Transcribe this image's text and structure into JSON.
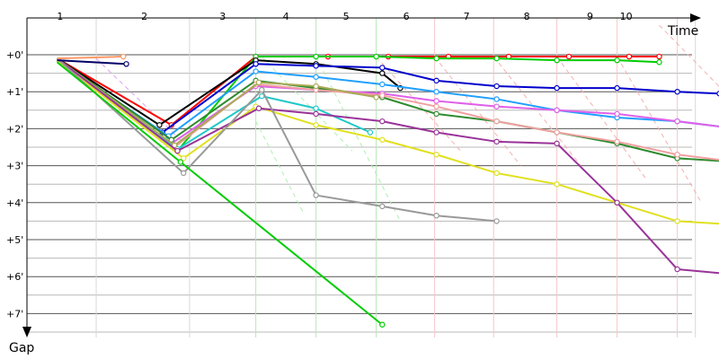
{
  "chart_data": {
    "type": "line",
    "title": "",
    "xlabel": "Time",
    "ylabel": "Gap",
    "x_ticks": [
      "1",
      "2",
      "3",
      "4",
      "5",
      "6",
      "7",
      "8",
      "9",
      "10"
    ],
    "y_ticks": [
      "+0'",
      "+1'",
      "+2'",
      "+3'",
      "+4'",
      "+5'",
      "+6'",
      "+7'"
    ],
    "ylim": [
      0,
      7.8
    ],
    "grid": true,
    "series": [
      {
        "color": "#ff0000",
        "points": [
          [
            0.5,
            0.1
          ],
          [
            2.4,
            1.9
          ],
          [
            3.8,
            0.05
          ],
          [
            5,
            0.05
          ],
          [
            6,
            0.05
          ],
          [
            7,
            0.05
          ],
          [
            8,
            0.05
          ],
          [
            9,
            0.05
          ],
          [
            10,
            0.05
          ],
          [
            10.5,
            0.05
          ]
        ]
      },
      {
        "color": "#00cc00",
        "points": [
          [
            0.5,
            0.1
          ],
          [
            2.5,
            2.6
          ],
          [
            3.8,
            0.05
          ],
          [
            4.8,
            0.05
          ],
          [
            5.8,
            0.05
          ],
          [
            6.8,
            0.1
          ],
          [
            7.8,
            0.1
          ],
          [
            8.8,
            0.15
          ],
          [
            9.8,
            0.15
          ],
          [
            10.5,
            0.2
          ]
        ]
      },
      {
        "color": "#000000",
        "points": [
          [
            0.5,
            0.1
          ],
          [
            2.2,
            1.9
          ],
          [
            3.8,
            0.15
          ],
          [
            4.8,
            0.25
          ],
          [
            5.9,
            0.5
          ],
          [
            6.2,
            0.9
          ]
        ]
      },
      {
        "color": "#0000cc",
        "points": [
          [
            0.5,
            0.15
          ],
          [
            2.25,
            2.1
          ],
          [
            3.8,
            0.25
          ],
          [
            4.8,
            0.3
          ],
          [
            5.9,
            0.35
          ],
          [
            6.8,
            0.7
          ],
          [
            7.8,
            0.85
          ],
          [
            8.8,
            0.9
          ],
          [
            9.8,
            0.9
          ],
          [
            10.8,
            1.0
          ],
          [
            11.5,
            1.05
          ]
        ]
      },
      {
        "color": "#1f9fff",
        "points": [
          [
            0.5,
            0.15
          ],
          [
            2.35,
            2.2
          ],
          [
            3.8,
            0.45
          ],
          [
            4.8,
            0.6
          ],
          [
            5.9,
            0.8
          ],
          [
            6.8,
            1.0
          ],
          [
            7.8,
            1.2
          ],
          [
            8.8,
            1.5
          ],
          [
            9.8,
            1.7
          ],
          [
            10.8,
            1.8
          ],
          [
            11.8,
            2.0
          ]
        ]
      },
      {
        "color": "#e060e8",
        "points": [
          [
            0.5,
            0.15
          ],
          [
            2.4,
            2.4
          ],
          [
            3.8,
            0.85
          ],
          [
            4.8,
            0.95
          ],
          [
            5.9,
            1.05
          ],
          [
            6.8,
            1.25
          ],
          [
            7.8,
            1.4
          ],
          [
            8.8,
            1.5
          ],
          [
            9.8,
            1.6
          ],
          [
            10.8,
            1.8
          ],
          [
            11.8,
            2.0
          ]
        ]
      },
      {
        "color": "#2e8b2e",
        "points": [
          [
            0.5,
            0.1
          ],
          [
            2.4,
            2.3
          ],
          [
            3.8,
            0.7
          ],
          [
            4.8,
            0.9
          ],
          [
            5.9,
            1.15
          ],
          [
            6.8,
            1.6
          ],
          [
            7.8,
            1.8
          ],
          [
            8.8,
            2.1
          ],
          [
            9.8,
            2.4
          ],
          [
            10.8,
            2.8
          ],
          [
            11.8,
            2.9
          ]
        ]
      },
      {
        "color": "#f0a0a0",
        "points": [
          [
            0.5,
            0.1
          ],
          [
            2.45,
            2.5
          ],
          [
            3.8,
            0.8
          ],
          [
            4.8,
            0.95
          ],
          [
            5.9,
            1.1
          ],
          [
            6.8,
            1.4
          ],
          [
            7.8,
            1.8
          ],
          [
            8.8,
            2.1
          ],
          [
            9.8,
            2.35
          ],
          [
            10.8,
            2.7
          ],
          [
            11.8,
            2.9
          ]
        ]
      },
      {
        "color": "#20c8c8",
        "points": [
          [
            0.5,
            0.15
          ],
          [
            2.5,
            2.55
          ],
          [
            3.9,
            1.12
          ],
          [
            4.8,
            1.45
          ],
          [
            5.7,
            2.1
          ]
        ]
      },
      {
        "color": "#aaaa55",
        "points": [
          [
            0.5,
            0.1
          ],
          [
            2.45,
            2.45
          ],
          [
            3.85,
            0.75
          ],
          [
            4.8,
            0.85
          ],
          [
            5.8,
            1.15
          ]
        ]
      },
      {
        "color": "#e0e020",
        "points": [
          [
            0.5,
            0.15
          ],
          [
            2.6,
            2.8
          ],
          [
            3.8,
            1.4
          ],
          [
            4.8,
            1.9
          ],
          [
            5.9,
            2.3
          ],
          [
            6.8,
            2.7
          ],
          [
            7.8,
            3.2
          ],
          [
            8.8,
            3.5
          ],
          [
            9.8,
            4.0
          ],
          [
            10.8,
            4.5
          ],
          [
            11.8,
            4.6
          ]
        ]
      },
      {
        "color": "#993399",
        "points": [
          [
            0.5,
            0.1
          ],
          [
            2.5,
            2.6
          ],
          [
            3.85,
            1.45
          ],
          [
            4.8,
            1.6
          ],
          [
            5.9,
            1.8
          ],
          [
            6.8,
            2.1
          ],
          [
            7.8,
            2.35
          ],
          [
            8.8,
            2.4
          ],
          [
            9.8,
            4.0
          ],
          [
            10.8,
            5.8
          ],
          [
            11.8,
            5.95
          ]
        ]
      },
      {
        "color": "#999999",
        "points": [
          [
            0.5,
            0.1
          ],
          [
            2.6,
            3.2
          ],
          [
            3.9,
            0.95
          ],
          [
            4.8,
            3.8
          ],
          [
            5.9,
            4.1
          ],
          [
            6.8,
            4.35
          ],
          [
            7.8,
            4.5
          ]
        ]
      },
      {
        "color": "#00cc00",
        "points": [
          [
            0.5,
            0.2
          ],
          [
            2.55,
            2.9
          ],
          [
            5.9,
            7.3
          ]
        ]
      },
      {
        "color": "#ff9966",
        "points": [
          [
            0.5,
            0.1
          ],
          [
            1.6,
            0.05
          ]
        ]
      },
      {
        "color": "#000066",
        "points": [
          [
            0.5,
            0.15
          ],
          [
            1.65,
            0.25
          ]
        ]
      }
    ]
  }
}
